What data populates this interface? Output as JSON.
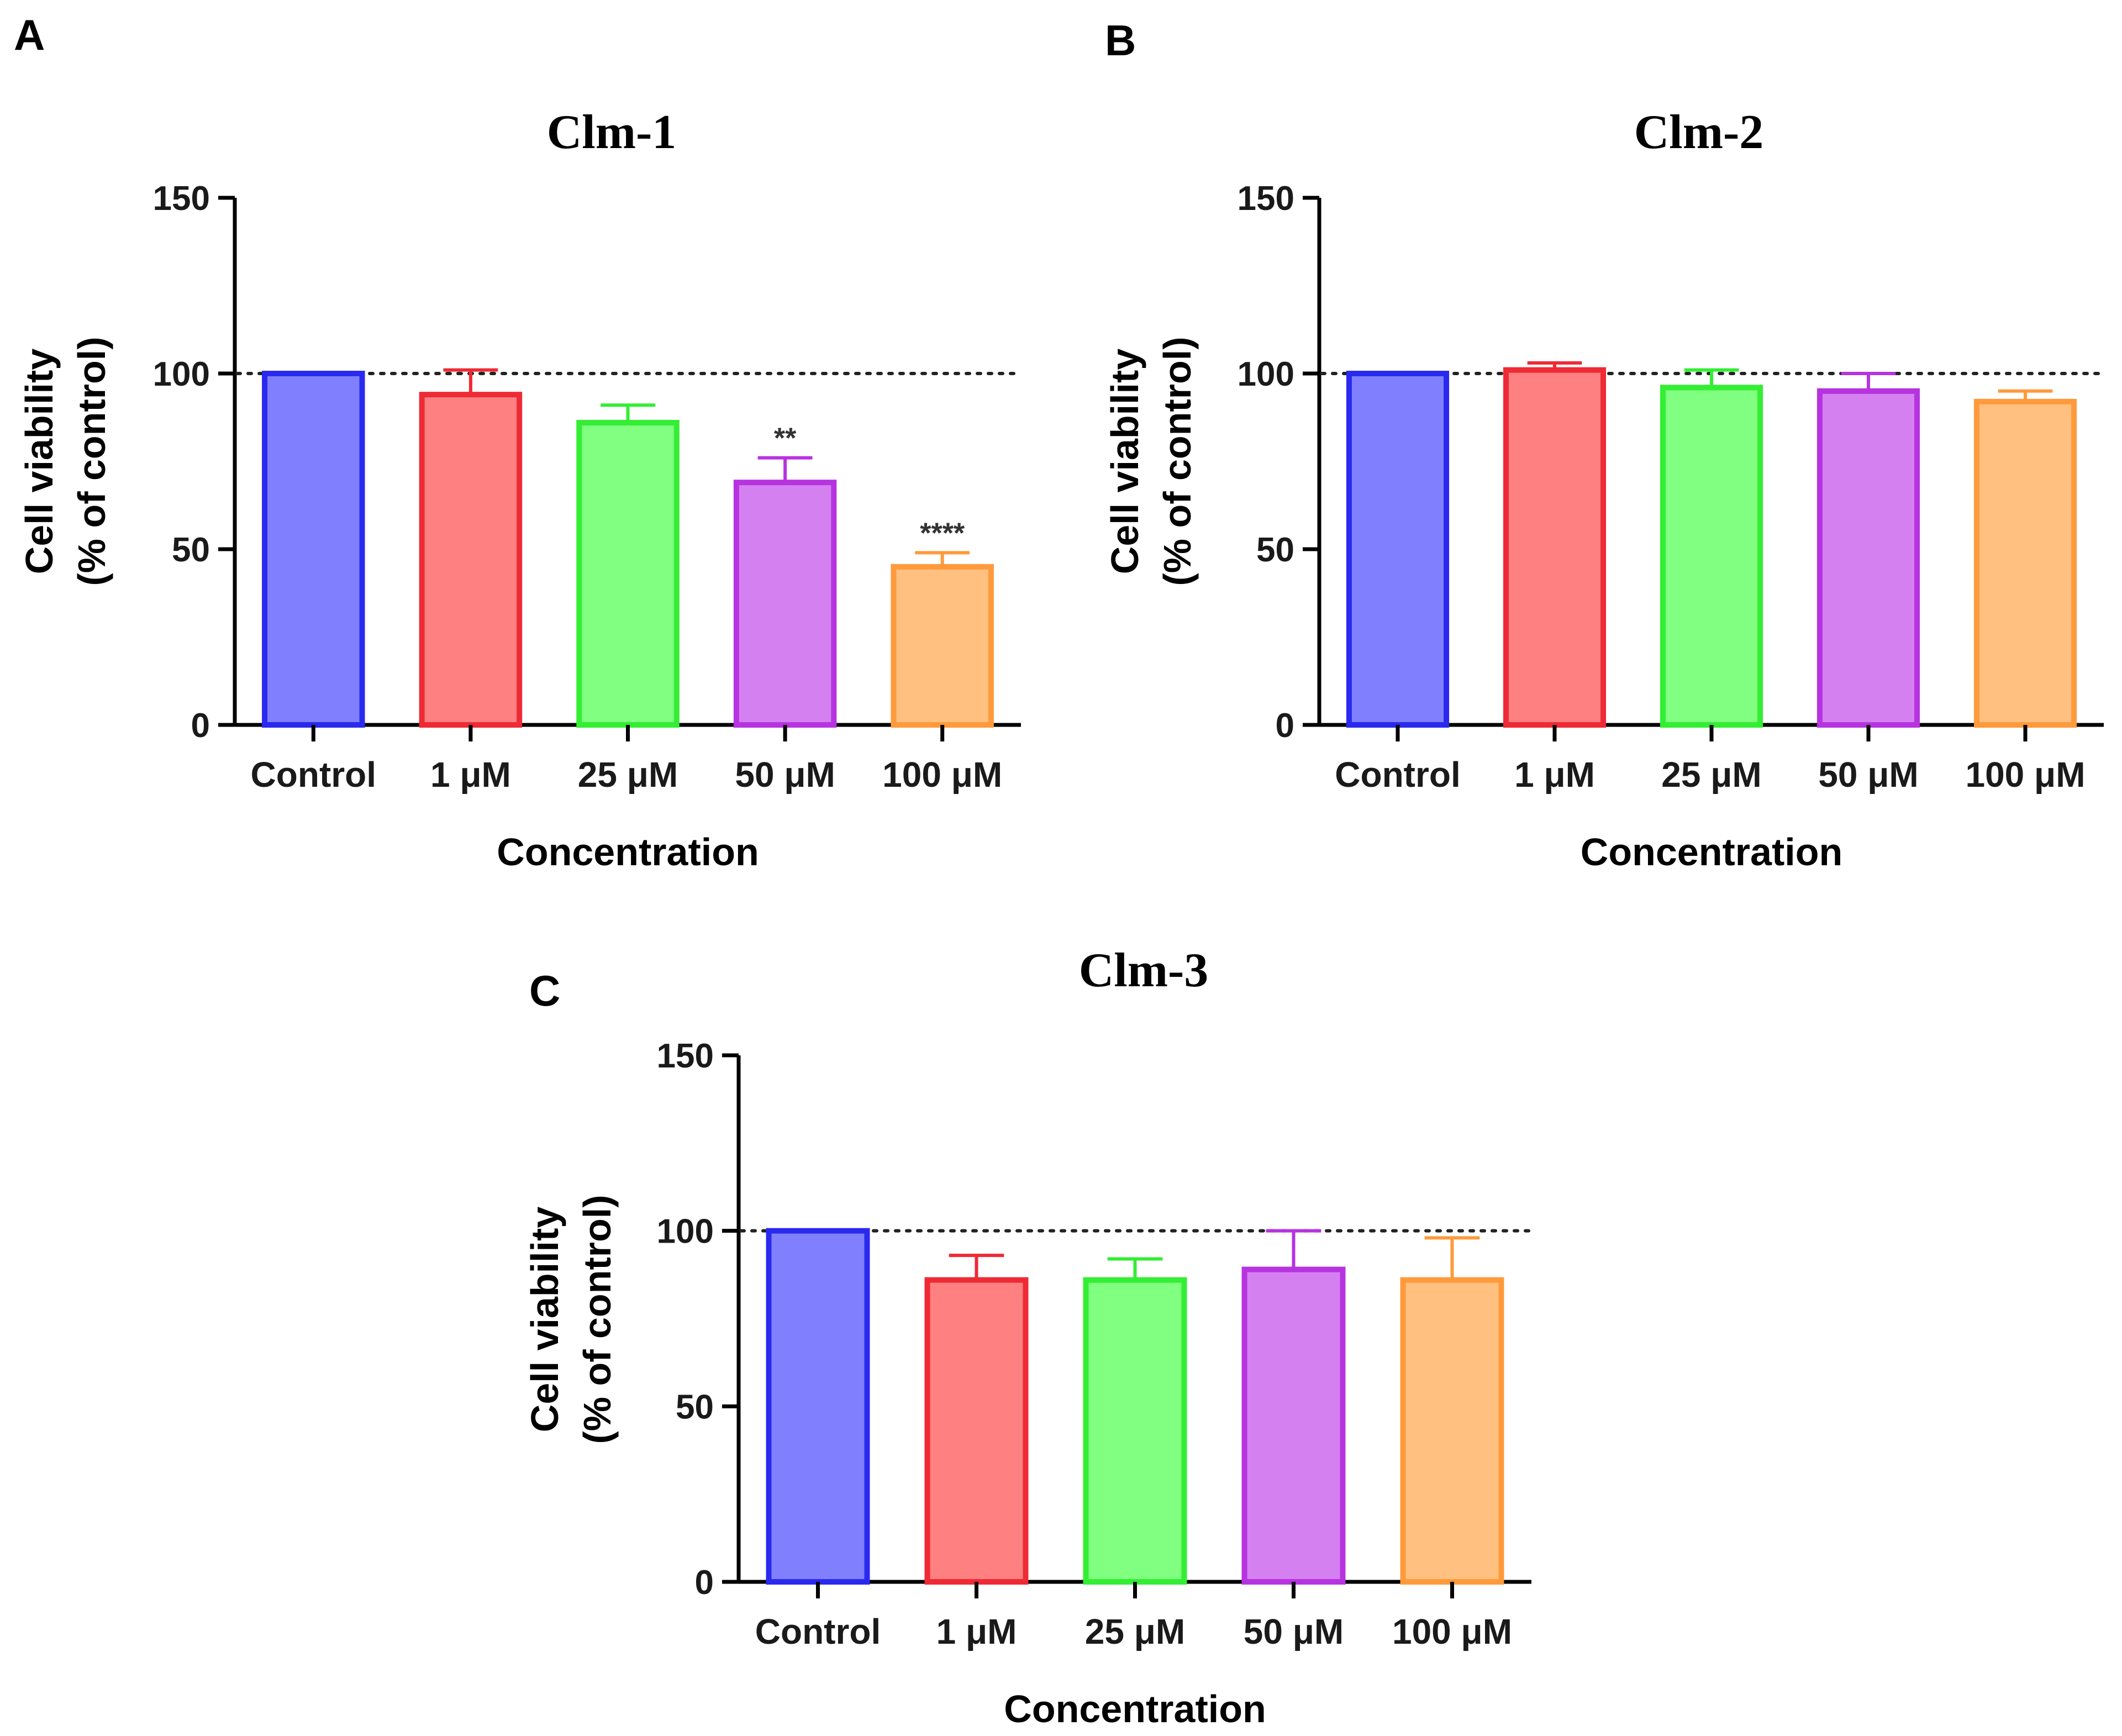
{
  "chart_data": [
    {
      "panel": "A",
      "type": "bar",
      "title": "Clm-1",
      "categories": [
        "Control",
        "1 μM",
        "25 μM",
        "50 μM",
        "100 μM"
      ],
      "values": [
        100,
        94,
        86,
        69,
        45
      ],
      "errors": [
        0,
        7,
        5,
        7,
        4
      ],
      "annotations": [
        "",
        "",
        "",
        "**",
        "****"
      ],
      "colors": [
        {
          "fill": "#8080ff",
          "stroke": "#2a2aee"
        },
        {
          "fill": "#ff8080",
          "stroke": "#ee2a35"
        },
        {
          "fill": "#80ff80",
          "stroke": "#33ee33"
        },
        {
          "fill": "#d580f0",
          "stroke": "#b733e0"
        },
        {
          "fill": "#ffc080",
          "stroke": "#ff9a3c"
        }
      ],
      "xlabel": "Concentration",
      "ylabel": [
        "Cell viability",
        "(% of control)"
      ],
      "ylim": [
        0,
        150
      ],
      "yticks": [
        0,
        50,
        100,
        150
      ],
      "reference_line": 100
    },
    {
      "panel": "B",
      "type": "bar",
      "title": "Clm-2",
      "categories": [
        "Control",
        "1 μM",
        "25 μM",
        "50 μM",
        "100 μM"
      ],
      "values": [
        100,
        101,
        96,
        95,
        92
      ],
      "errors": [
        0,
        2,
        5,
        5,
        3
      ],
      "annotations": [
        "",
        "",
        "",
        "",
        ""
      ],
      "colors": [
        {
          "fill": "#8080ff",
          "stroke": "#2a2aee"
        },
        {
          "fill": "#ff8080",
          "stroke": "#ee2a35"
        },
        {
          "fill": "#80ff80",
          "stroke": "#33ee33"
        },
        {
          "fill": "#d580f0",
          "stroke": "#b733e0"
        },
        {
          "fill": "#ffc080",
          "stroke": "#ff9a3c"
        }
      ],
      "xlabel": "Concentration",
      "ylabel": [
        "Cell viability",
        "(% of control)"
      ],
      "ylim": [
        0,
        150
      ],
      "yticks": [
        0,
        50,
        100,
        150
      ],
      "reference_line": 100
    },
    {
      "panel": "C",
      "type": "bar",
      "title": "Clm-3",
      "categories": [
        "Control",
        "1 μM",
        "25 μM",
        "50 μM",
        "100 μM"
      ],
      "values": [
        100,
        86,
        86,
        89,
        86
      ],
      "errors": [
        0,
        7,
        6,
        11,
        12
      ],
      "annotations": [
        "",
        "",
        "",
        "",
        ""
      ],
      "colors": [
        {
          "fill": "#8080ff",
          "stroke": "#2a2aee"
        },
        {
          "fill": "#ff8080",
          "stroke": "#ee2a35"
        },
        {
          "fill": "#80ff80",
          "stroke": "#33ee33"
        },
        {
          "fill": "#d580f0",
          "stroke": "#b733e0"
        },
        {
          "fill": "#ffc080",
          "stroke": "#ff9a3c"
        }
      ],
      "xlabel": "Concentration",
      "ylabel": [
        "Cell viability",
        "(% of control)"
      ],
      "ylim": [
        0,
        150
      ],
      "yticks": [
        0,
        50,
        100,
        150
      ],
      "reference_line": 100
    }
  ]
}
